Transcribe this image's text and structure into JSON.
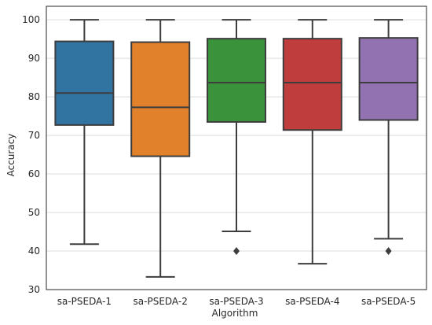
{
  "chart_data": {
    "type": "box",
    "title": "",
    "xlabel": "Algorithm",
    "ylabel": "Accuracy",
    "ylim": [
      30,
      103.5
    ],
    "yticks": [
      30,
      40,
      50,
      60,
      70,
      80,
      90,
      100
    ],
    "grid": "horizontal",
    "categories": [
      "sa-PSEDA-1",
      "sa-PSEDA-2",
      "sa-PSEDA-3",
      "sa-PSEDA-4",
      "sa-PSEDA-5"
    ],
    "series": [
      {
        "whisker_low": 41.8,
        "q1": 72.7,
        "median": 81.0,
        "q3": 94.4,
        "whisker_high": 100,
        "outliers": [],
        "color": "#3274a1"
      },
      {
        "whisker_low": 33.3,
        "q1": 64.6,
        "median": 77.3,
        "q3": 94.2,
        "whisker_high": 100,
        "outliers": [],
        "color": "#e1812c"
      },
      {
        "whisker_low": 45.1,
        "q1": 73.5,
        "median": 83.7,
        "q3": 95.1,
        "whisker_high": 100,
        "outliers": [
          40.0
        ],
        "color": "#3a923a"
      },
      {
        "whisker_low": 36.7,
        "q1": 71.4,
        "median": 83.7,
        "q3": 95.1,
        "whisker_high": 100,
        "outliers": [],
        "color": "#c03d3e"
      },
      {
        "whisker_low": 43.2,
        "q1": 74.0,
        "median": 83.7,
        "q3": 95.3,
        "whisker_high": 100,
        "outliers": [
          40.0
        ],
        "color": "#9372b2"
      }
    ]
  }
}
